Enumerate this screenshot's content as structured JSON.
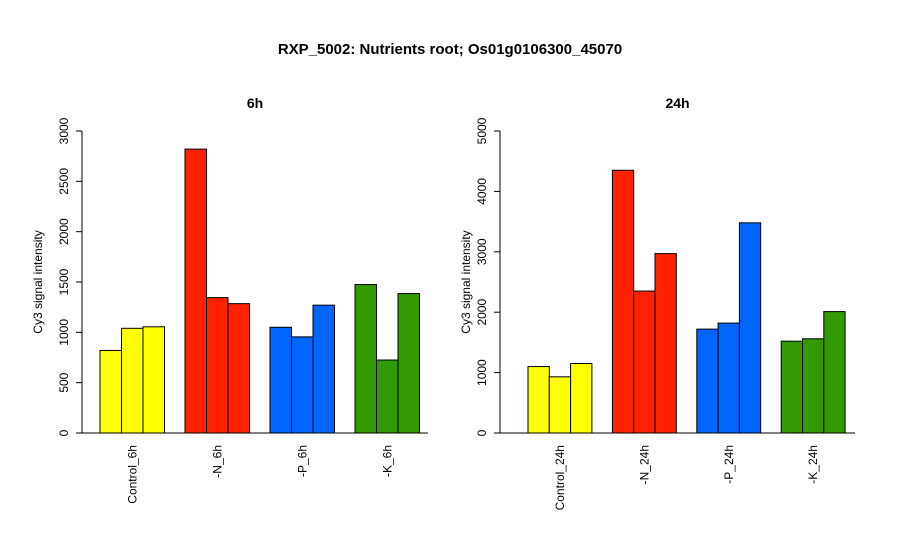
{
  "figure_title": "RXP_5002: Nutrients root; Os01g0106300_45070",
  "colors": {
    "Control": "#ffff00",
    "-N": "#ff2200",
    "-P": "#0066ff",
    "-K": "#339900"
  },
  "chart_data": [
    {
      "type": "bar",
      "title": "6h",
      "ylabel": "Cy3 signal intensity",
      "xlabel": "",
      "ylim": [
        0,
        3000
      ],
      "yticks": [
        0,
        500,
        1000,
        1500,
        2000,
        2500,
        3000
      ],
      "groups": [
        {
          "label": "Control_6h",
          "color_key": "Control",
          "values": [
            820,
            1040,
            1055
          ]
        },
        {
          "label": "-N_6h",
          "color_key": "-N",
          "values": [
            2820,
            1345,
            1285
          ]
        },
        {
          "label": "-P_6h",
          "color_key": "-P",
          "values": [
            1050,
            955,
            1270
          ]
        },
        {
          "label": "-K_6h",
          "color_key": "-K",
          "values": [
            1475,
            725,
            1385
          ]
        }
      ]
    },
    {
      "type": "bar",
      "title": "24h",
      "ylabel": "Cy3 signal intensity",
      "xlabel": "",
      "ylim": [
        0,
        5000
      ],
      "yticks": [
        0,
        1000,
        2000,
        3000,
        4000,
        5000
      ],
      "groups": [
        {
          "label": "Control_24h",
          "color_key": "Control",
          "values": [
            1100,
            930,
            1150
          ]
        },
        {
          "label": "-N_24h",
          "color_key": "-N",
          "values": [
            4350,
            2350,
            2970
          ]
        },
        {
          "label": "-P_24h",
          "color_key": "-P",
          "values": [
            1720,
            1820,
            3480
          ]
        },
        {
          "label": "-K_24h",
          "color_key": "-K",
          "values": [
            1520,
            1560,
            2010
          ]
        }
      ]
    }
  ]
}
